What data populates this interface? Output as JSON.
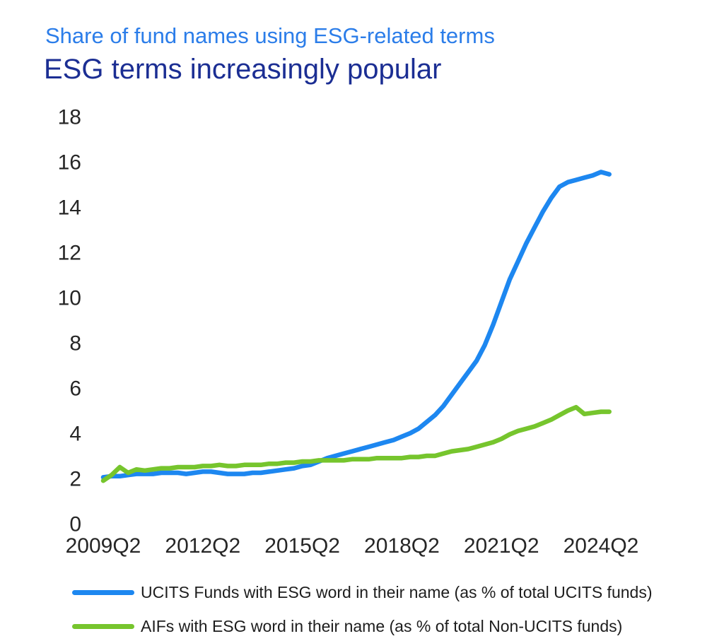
{
  "header": {
    "subtitle": "Share of fund names using ESG-related terms",
    "title": "ESG terms increasingly popular"
  },
  "colors": {
    "subtitle_text": "#2b7de9",
    "title_text": "#1b2e93",
    "axis_text": "#262626",
    "legend_text": "#1d1d1d",
    "ucits_line": "#1d87f0",
    "aifs_line": "#76c52d"
  },
  "chart_data": {
    "type": "line",
    "title": "ESG terms increasingly popular",
    "subtitle": "Share of fund names using ESG-related terms",
    "xlabel": "",
    "ylabel": "",
    "ylim": [
      0,
      18
    ],
    "yticks": [
      0,
      2,
      4,
      6,
      8,
      10,
      12,
      14,
      16,
      18
    ],
    "grid": false,
    "legend_position": "bottom",
    "xtick_labels": [
      "2009Q2",
      "2012Q2",
      "2015Q2",
      "2018Q2",
      "2021Q2",
      "2024Q2"
    ],
    "xtick_indices": [
      0,
      12,
      24,
      36,
      48,
      60
    ],
    "x": [
      "2009Q2",
      "2009Q3",
      "2009Q4",
      "2010Q1",
      "2010Q2",
      "2010Q3",
      "2010Q4",
      "2011Q1",
      "2011Q2",
      "2011Q3",
      "2011Q4",
      "2012Q1",
      "2012Q2",
      "2012Q3",
      "2012Q4",
      "2013Q1",
      "2013Q2",
      "2013Q3",
      "2013Q4",
      "2014Q1",
      "2014Q2",
      "2014Q3",
      "2014Q4",
      "2015Q1",
      "2015Q2",
      "2015Q3",
      "2015Q4",
      "2016Q1",
      "2016Q2",
      "2016Q3",
      "2016Q4",
      "2017Q1",
      "2017Q2",
      "2017Q3",
      "2017Q4",
      "2018Q1",
      "2018Q2",
      "2018Q3",
      "2018Q4",
      "2019Q1",
      "2019Q2",
      "2019Q3",
      "2019Q4",
      "2020Q1",
      "2020Q2",
      "2020Q3",
      "2020Q4",
      "2021Q1",
      "2021Q2",
      "2021Q3",
      "2021Q4",
      "2022Q1",
      "2022Q2",
      "2022Q3",
      "2022Q4",
      "2023Q1",
      "2023Q2",
      "2023Q3",
      "2023Q4",
      "2024Q1",
      "2024Q2",
      "2024Q3"
    ],
    "series": [
      {
        "name": "UCITS Funds with ESG word in their name (as % of total UCITS funds)",
        "color": "#1d87f0",
        "values": [
          2.05,
          2.1,
          2.1,
          2.15,
          2.2,
          2.2,
          2.2,
          2.25,
          2.25,
          2.25,
          2.2,
          2.25,
          2.3,
          2.3,
          2.25,
          2.2,
          2.2,
          2.2,
          2.25,
          2.25,
          2.3,
          2.35,
          2.4,
          2.45,
          2.55,
          2.6,
          2.75,
          2.9,
          3.0,
          3.1,
          3.2,
          3.3,
          3.4,
          3.5,
          3.6,
          3.7,
          3.85,
          4.0,
          4.2,
          4.5,
          4.8,
          5.2,
          5.7,
          6.2,
          6.7,
          7.2,
          7.9,
          8.8,
          9.8,
          10.8,
          11.6,
          12.4,
          13.1,
          13.8,
          14.4,
          14.9,
          15.1,
          15.2,
          15.3,
          15.4,
          15.55,
          15.45
        ]
      },
      {
        "name": "AIFs with ESG word in their name (as % of total Non-UCITS funds)",
        "color": "#76c52d",
        "values": [
          1.9,
          2.15,
          2.5,
          2.25,
          2.4,
          2.35,
          2.4,
          2.45,
          2.45,
          2.5,
          2.5,
          2.5,
          2.55,
          2.55,
          2.6,
          2.55,
          2.55,
          2.6,
          2.6,
          2.6,
          2.65,
          2.65,
          2.7,
          2.7,
          2.75,
          2.75,
          2.8,
          2.8,
          2.8,
          2.8,
          2.85,
          2.85,
          2.85,
          2.9,
          2.9,
          2.9,
          2.9,
          2.95,
          2.95,
          3.0,
          3.0,
          3.1,
          3.2,
          3.25,
          3.3,
          3.4,
          3.5,
          3.6,
          3.75,
          3.95,
          4.1,
          4.2,
          4.3,
          4.45,
          4.6,
          4.8,
          5.0,
          5.15,
          4.85,
          4.9,
          4.95,
          4.95
        ]
      }
    ]
  }
}
